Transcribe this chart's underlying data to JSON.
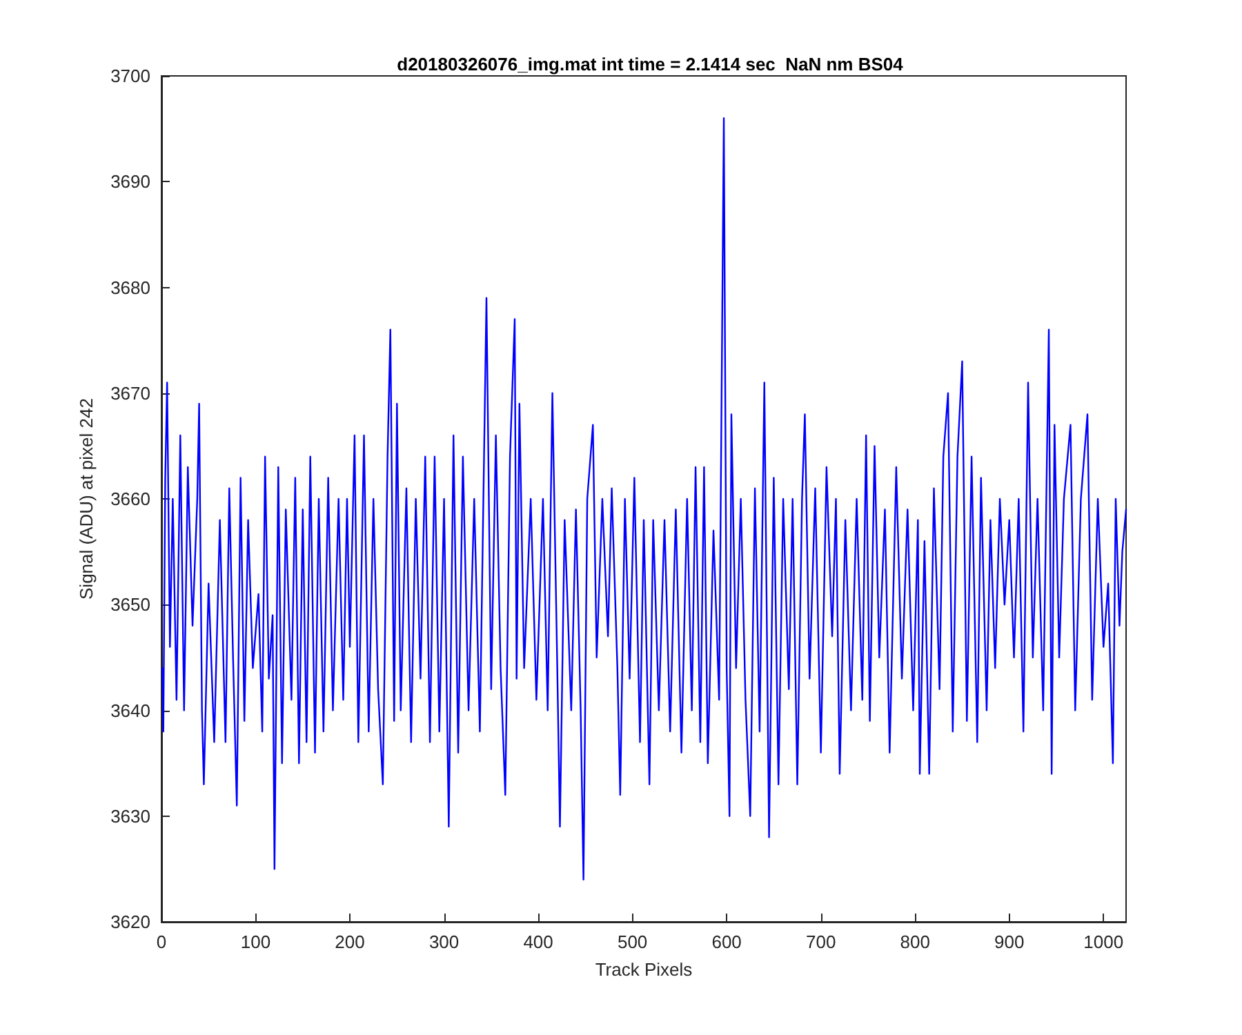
{
  "chart_data": {
    "type": "line",
    "title": "d20180326076_img.mat int time = 2.1414 sec  NaN nm BS04",
    "xlabel": "Track Pixels",
    "ylabel": "Signal (ADU) at pixel 242",
    "x": [
      1,
      2,
      4,
      6,
      9,
      12,
      16,
      20,
      24,
      28,
      33,
      38,
      40,
      43,
      45,
      50,
      56,
      62,
      68,
      72,
      76,
      80,
      84,
      88,
      92,
      97,
      103,
      107,
      110,
      114,
      118,
      120,
      124,
      128,
      132,
      138,
      142,
      146,
      150,
      154,
      158,
      163,
      167,
      172,
      177,
      182,
      188,
      193,
      197,
      200,
      205,
      209,
      215,
      220,
      225,
      230,
      235,
      240,
      243,
      247,
      250,
      254,
      260,
      265,
      270,
      275,
      280,
      285,
      290,
      295,
      300,
      305,
      310,
      315,
      320,
      326,
      332,
      338,
      345,
      350,
      355,
      360,
      365,
      370,
      375,
      377,
      380,
      385,
      392,
      398,
      405,
      410,
      415,
      420,
      423,
      428,
      435,
      440,
      445,
      448,
      452,
      458,
      462,
      468,
      474,
      478,
      484,
      487,
      492,
      497,
      502,
      508,
      512,
      518,
      522,
      528,
      534,
      540,
      546,
      552,
      558,
      563,
      567,
      572,
      576,
      580,
      586,
      592,
      597,
      600,
      603,
      605,
      610,
      615,
      620,
      625,
      630,
      635,
      640,
      645,
      650,
      655,
      660,
      666,
      670,
      675,
      680,
      683,
      688,
      694,
      700,
      706,
      712,
      716,
      720,
      726,
      732,
      738,
      744,
      748,
      752,
      757,
      762,
      768,
      773,
      780,
      786,
      792,
      798,
      803,
      805,
      810,
      815,
      820,
      826,
      830,
      835,
      840,
      845,
      850,
      855,
      860,
      866,
      870,
      876,
      880,
      885,
      890,
      895,
      900,
      905,
      910,
      915,
      920,
      925,
      930,
      936,
      942,
      945,
      948,
      953,
      958,
      965,
      970,
      976,
      983,
      988,
      994,
      1000,
      1005,
      1010,
      1013,
      1017,
      1020,
      1024
    ],
    "series": [
      {
        "color": "#0000ff",
        "values": [
          3644,
          3638,
          3662,
          3671,
          3646,
          3660,
          3641,
          3666,
          3640,
          3663,
          3648,
          3660,
          3669,
          3640,
          3633,
          3652,
          3637,
          3658,
          3637,
          3661,
          3645,
          3631,
          3662,
          3639,
          3658,
          3644,
          3651,
          3638,
          3664,
          3643,
          3649,
          3625,
          3663,
          3635,
          3659,
          3641,
          3662,
          3635,
          3659,
          3637,
          3664,
          3636,
          3660,
          3638,
          3662,
          3640,
          3660,
          3641,
          3660,
          3646,
          3666,
          3637,
          3666,
          3638,
          3660,
          3642,
          3633,
          3664,
          3676,
          3639,
          3669,
          3640,
          3661,
          3637,
          3660,
          3643,
          3664,
          3637,
          3664,
          3638,
          3660,
          3629,
          3666,
          3636,
          3664,
          3640,
          3660,
          3638,
          3679,
          3642,
          3666,
          3644,
          3632,
          3664,
          3677,
          3643,
          3669,
          3644,
          3660,
          3641,
          3660,
          3640,
          3670,
          3645,
          3629,
          3658,
          3640,
          3659,
          3640,
          3624,
          3660,
          3667,
          3645,
          3660,
          3647,
          3661,
          3644,
          3632,
          3660,
          3643,
          3662,
          3637,
          3658,
          3633,
          3658,
          3640,
          3658,
          3638,
          3659,
          3636,
          3660,
          3640,
          3663,
          3637,
          3663,
          3635,
          3657,
          3641,
          3696,
          3644,
          3630,
          3668,
          3644,
          3660,
          3641,
          3630,
          3661,
          3638,
          3671,
          3628,
          3662,
          3633,
          3660,
          3642,
          3660,
          3633,
          3660,
          3668,
          3643,
          3661,
          3636,
          3663,
          3647,
          3660,
          3634,
          3658,
          3640,
          3660,
          3641,
          3666,
          3639,
          3665,
          3645,
          3659,
          3636,
          3663,
          3643,
          3659,
          3640,
          3658,
          3634,
          3656,
          3634,
          3661,
          3642,
          3664,
          3670,
          3638,
          3664,
          3673,
          3639,
          3664,
          3637,
          3662,
          3640,
          3658,
          3644,
          3660,
          3650,
          3658,
          3645,
          3660,
          3638,
          3671,
          3645,
          3660,
          3640,
          3676,
          3634,
          3667,
          3645,
          3660,
          3667,
          3640,
          3660,
          3668,
          3641,
          3660,
          3646,
          3652,
          3635,
          3660,
          3648,
          3655,
          3659
        ]
      }
    ],
    "xlim": [
      0,
      1024
    ],
    "xticks": [
      0,
      100,
      200,
      300,
      400,
      500,
      600,
      700,
      800,
      900,
      1000
    ],
    "ylim": [
      3620,
      3700
    ],
    "yticks": [
      3620,
      3630,
      3640,
      3650,
      3660,
      3670,
      3680,
      3690,
      3700
    ],
    "grid": false,
    "marker": "none",
    "line_style": "solid"
  }
}
